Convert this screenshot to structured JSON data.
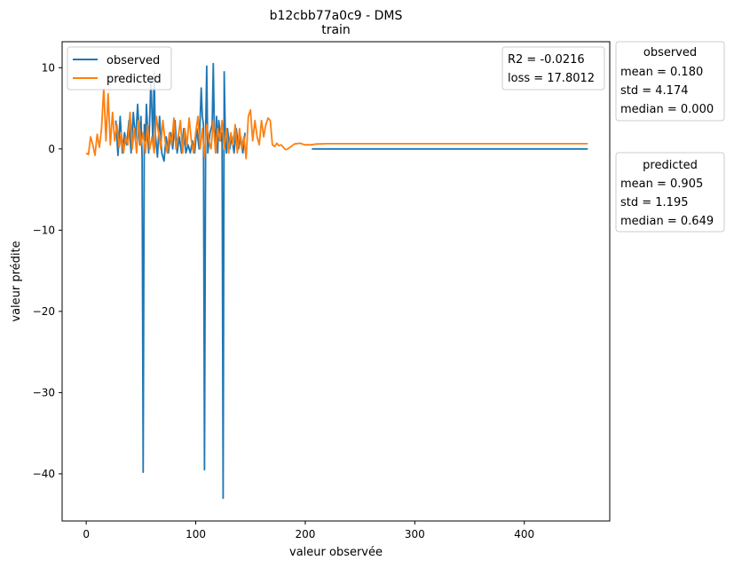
{
  "chart_data": {
    "type": "line",
    "title": "b12cbb77a0c9 - DMS",
    "subtitle": "train",
    "xlabel": "valeur observée",
    "ylabel": "valeur prédite",
    "xlim": [
      -22,
      478
    ],
    "ylim": [
      -45.8,
      13.2
    ],
    "x_ticks": [
      0,
      100,
      200,
      300,
      400
    ],
    "x_tick_labels": [
      "0",
      "100",
      "200",
      "300",
      "400"
    ],
    "y_ticks": [
      10,
      0,
      -10,
      -20,
      -30,
      -40
    ],
    "y_tick_labels": [
      "10",
      "0",
      "−10",
      "−20",
      "−30",
      "−40"
    ],
    "grid": false,
    "legend_position": "top-left",
    "metrics_box": {
      "position": "top-right",
      "lines": [
        "R2 = -0.0216",
        "loss = 17.8012"
      ]
    },
    "stats_boxes": [
      {
        "title": "observed",
        "lines": [
          "mean = 0.180",
          "std = 4.174",
          "median = 0.000"
        ]
      },
      {
        "title": "predicted",
        "lines": [
          "mean = 0.905",
          "std = 1.195",
          "median = 0.649"
        ]
      }
    ],
    "series": [
      {
        "name": "observed",
        "color": "#1f77b4",
        "segments": [
          {
            "x": [
              27,
              29,
              31,
              33,
              35,
              37,
              39,
              41,
              43,
              45,
              47,
              49,
              50,
              51,
              52,
              53,
              54,
              55,
              57,
              59,
              61,
              62,
              63,
              65,
              67,
              69,
              71,
              73,
              75,
              77,
              79,
              81,
              83,
              85,
              87,
              89,
              91,
              93,
              95,
              97,
              99,
              101,
              103,
              105,
              106,
              107,
              108,
              109,
              110,
              111,
              113,
              115,
              116,
              117,
              118,
              119,
              120,
              121,
              123,
              124,
              125,
              126,
              127,
              128,
              129,
              131,
              133,
              135,
              137,
              139,
              141,
              143,
              145
            ],
            "y": [
              3.5,
              -0.8,
              4.0,
              -0.5,
              2.0,
              0.5,
              3.5,
              -0.5,
              4.5,
              1.0,
              5.5,
              0.5,
              4.0,
              -1.0,
              -39.8,
              3.0,
              1.0,
              5.5,
              -0.5,
              8.5,
              0.5,
              9.5,
              2.0,
              -1.0,
              4.0,
              -0.5,
              -1.5,
              1.5,
              -0.5,
              2.0,
              0.0,
              3.5,
              -0.5,
              1.5,
              -0.5,
              2.5,
              -0.5,
              0.5,
              -0.5,
              1.0,
              -0.5,
              2.5,
              0.0,
              7.5,
              4.0,
              3.0,
              -39.5,
              2.0,
              10.2,
              -0.5,
              2.0,
              3.0,
              10.5,
              2.5,
              0.0,
              4.0,
              -0.5,
              3.5,
              1.0,
              2.0,
              -43.0,
              9.5,
              1.5,
              -0.5,
              2.5,
              0.0,
              1.5,
              -0.5,
              2.5,
              0.0,
              1.5,
              -0.5,
              2.0
            ]
          },
          {
            "x": [
              206,
              458
            ],
            "y": [
              0.0,
              0.0
            ]
          }
        ]
      },
      {
        "name": "predicted",
        "color": "#ff7f0e",
        "segments": [
          {
            "x": [
              0,
              2,
              4,
              6,
              8,
              10,
              12,
              14,
              16,
              18,
              20,
              22,
              24,
              26,
              28,
              30,
              32,
              34,
              36,
              38,
              40,
              42,
              44,
              46,
              48,
              50,
              52,
              54,
              56,
              58,
              60,
              62,
              64,
              66,
              68,
              70,
              72,
              74,
              76,
              78,
              80,
              82,
              84,
              86,
              88,
              90,
              92,
              94,
              96,
              98,
              100,
              102,
              104,
              106,
              108,
              110,
              112,
              114,
              116,
              118,
              120,
              122,
              124,
              126,
              128,
              130,
              132,
              134,
              136,
              138,
              140,
              142,
              144,
              146,
              148,
              150,
              152,
              154,
              156,
              158,
              160,
              162,
              164,
              166,
              168,
              170,
              172,
              174,
              176,
              178,
              180,
              182,
              184,
              186,
              188,
              190,
              195,
              200,
              205,
              210,
              220,
              458
            ],
            "y": [
              -0.5,
              -0.7,
              1.5,
              0.5,
              -0.8,
              1.8,
              0.2,
              2.5,
              7.5,
              1.0,
              6.8,
              0.5,
              4.5,
              1.0,
              3.0,
              0.2,
              2.0,
              -0.5,
              1.5,
              0.5,
              4.5,
              0.0,
              2.5,
              -0.5,
              3.5,
              0.5,
              2.0,
              -0.5,
              3.0,
              0.0,
              1.5,
              -0.5,
              4.0,
              2.0,
              0.0,
              3.5,
              1.0,
              -0.5,
              2.0,
              0.5,
              3.8,
              0.0,
              1.5,
              3.5,
              -0.5,
              2.5,
              0.5,
              3.8,
              1.0,
              -0.5,
              2.0,
              4.0,
              0.0,
              2.5,
              -1.0,
              3.0,
              1.0,
              0.0,
              3.5,
              -0.5,
              2.5,
              1.0,
              3.5,
              0.0,
              2.5,
              -0.5,
              2.0,
              0.5,
              3.0,
              -0.5,
              2.5,
              0.0,
              1.5,
              -1.2,
              4.0,
              4.8,
              1.0,
              3.5,
              1.5,
              0.5,
              3.5,
              1.5,
              3.0,
              3.8,
              3.5,
              0.5,
              0.3,
              0.7,
              0.4,
              0.5,
              0.2,
              -0.1,
              0.0,
              0.2,
              0.4,
              0.6,
              0.7,
              0.5,
              0.5,
              0.6,
              0.65,
              0.649
            ]
          }
        ]
      }
    ]
  }
}
